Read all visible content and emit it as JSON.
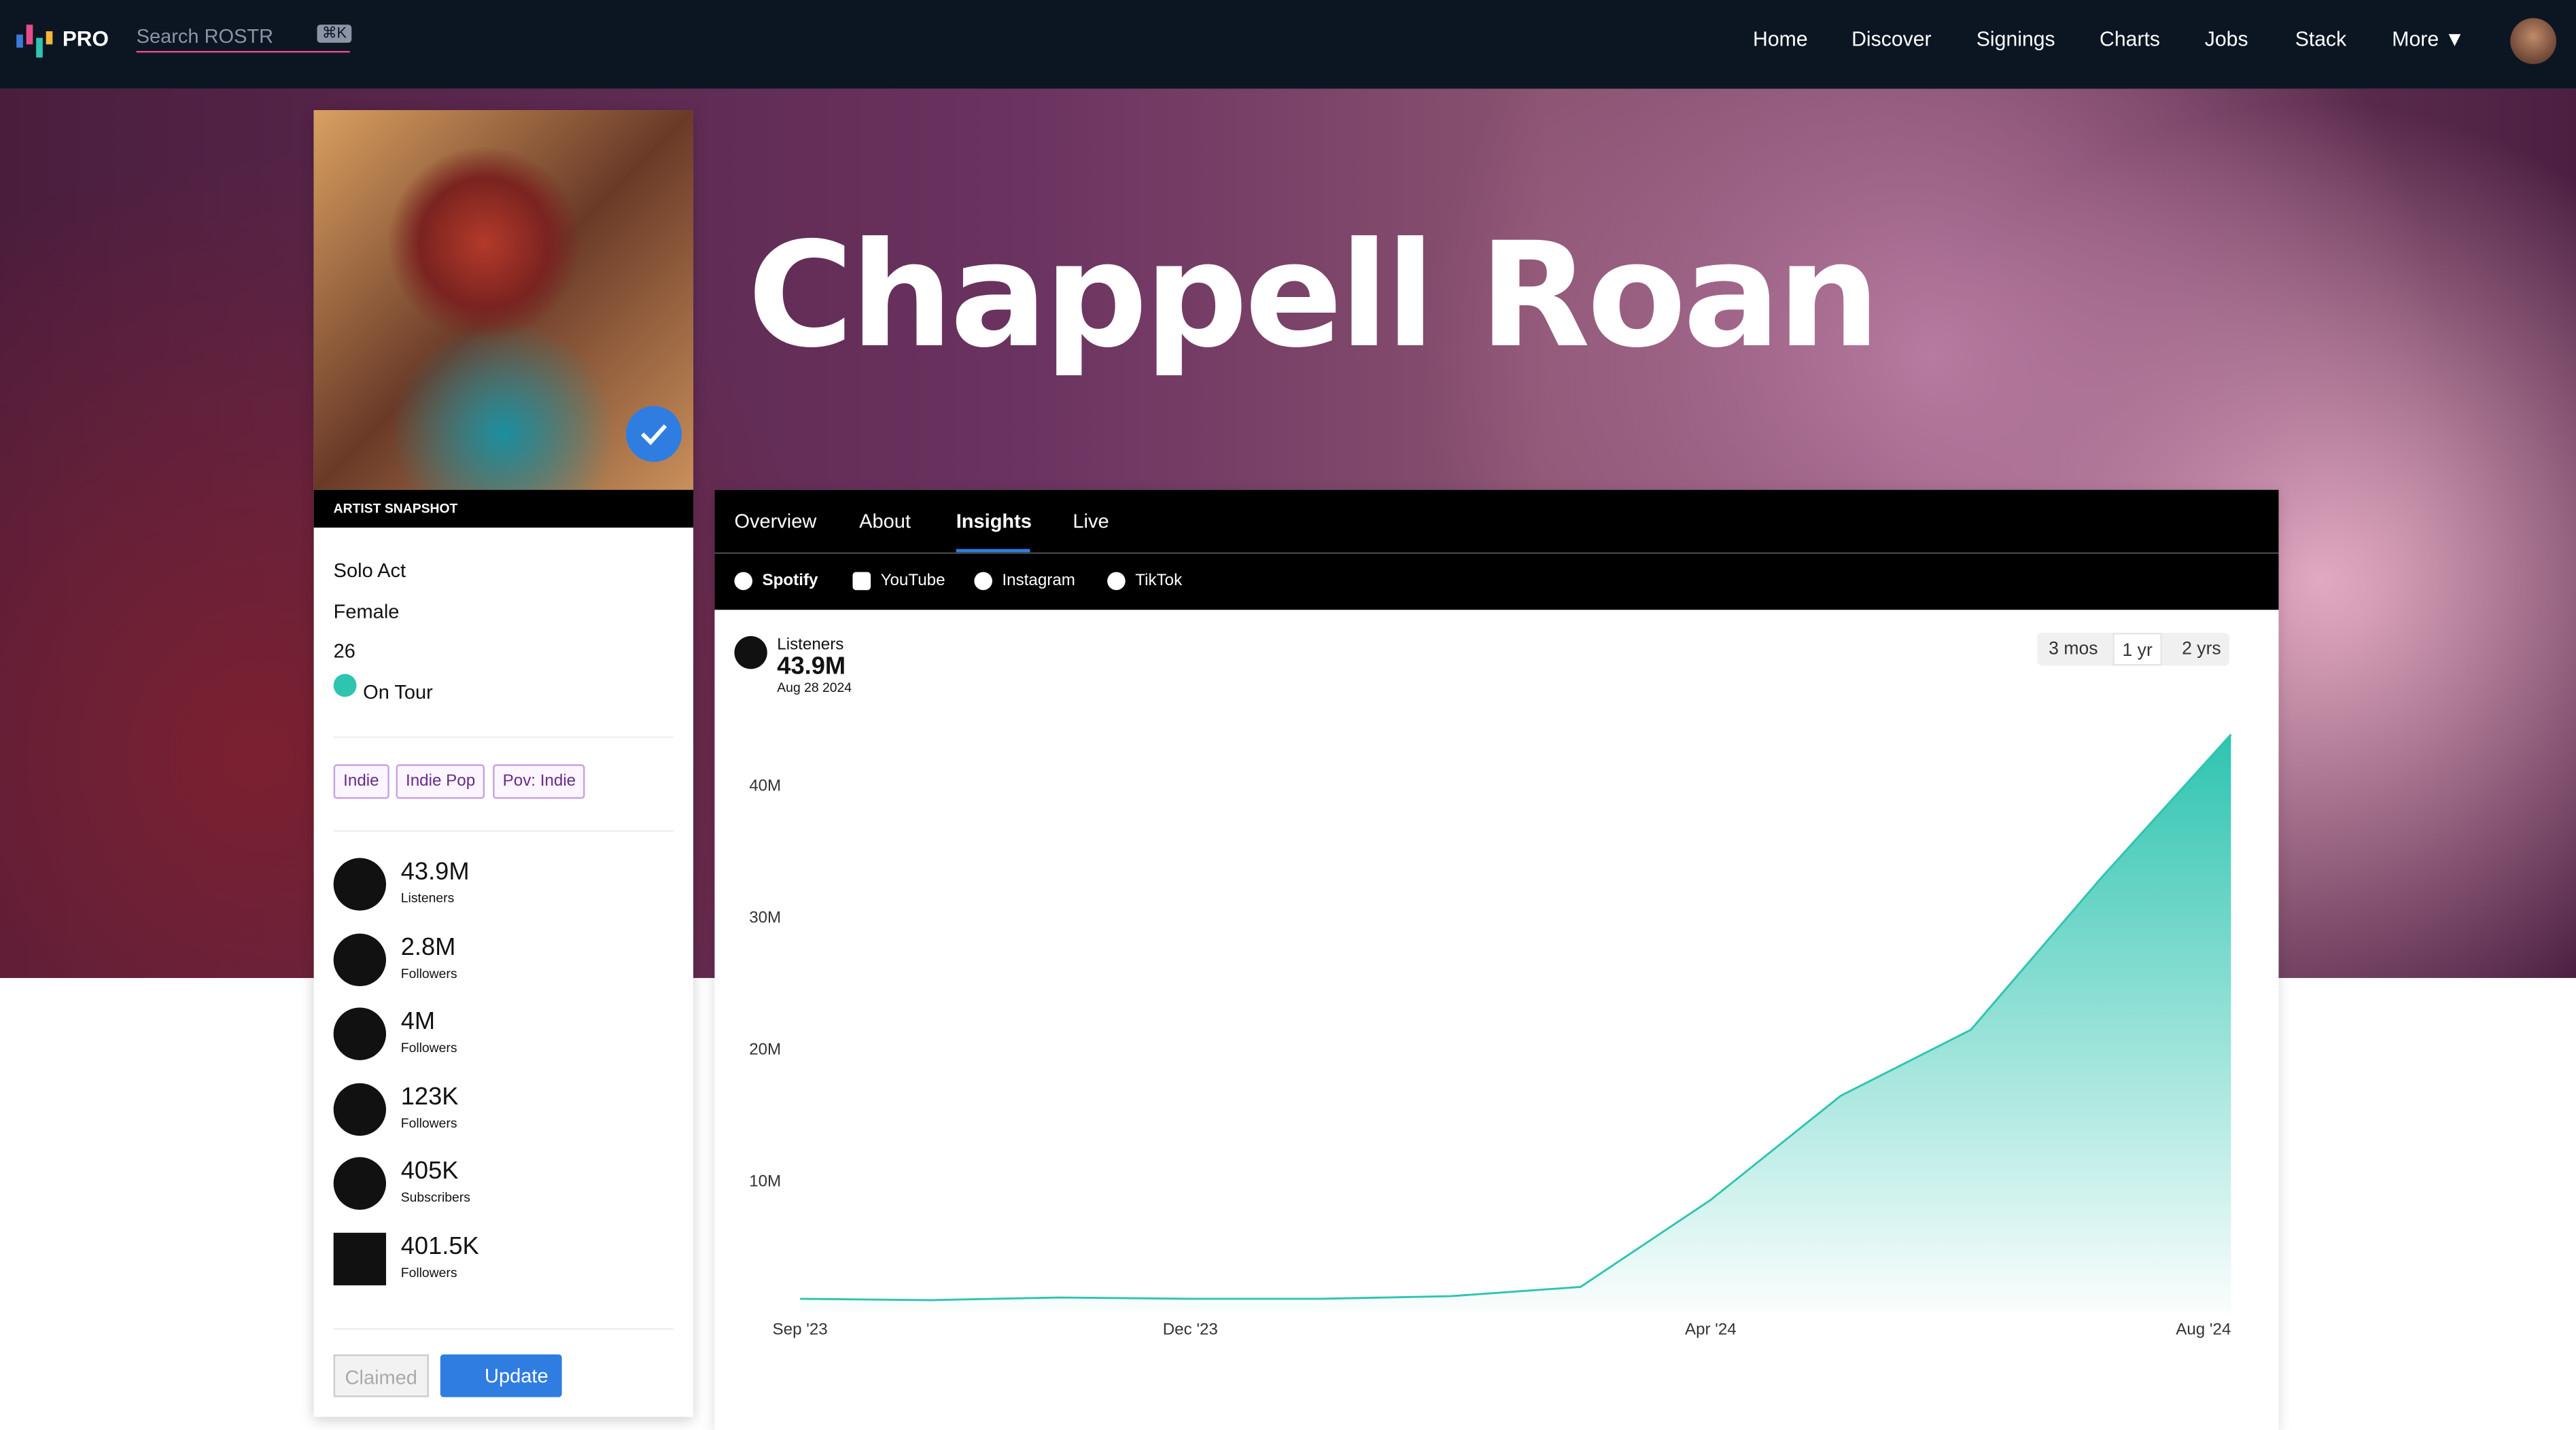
{
  "nav": {
    "brand": "PRO",
    "search_placeholder": "Search ROSTR",
    "shortcut": "⌘K",
    "links": [
      "Home",
      "Discover",
      "Signings",
      "Charts",
      "Jobs",
      "Stack",
      "More ▼"
    ]
  },
  "artist": {
    "name": "Chappell Roan"
  },
  "snapshot": {
    "title": "ARTIST SNAPSHOT",
    "facts": [
      "Solo Act",
      "Female",
      "26",
      "On Tour"
    ],
    "genres": [
      "Indie",
      "Indie Pop",
      "Pov: Indie"
    ],
    "stats": [
      {
        "value": "43.9M",
        "label": "Listeners"
      },
      {
        "value": "2.8M",
        "label": "Followers"
      },
      {
        "value": "4M",
        "label": "Followers"
      },
      {
        "value": "123K",
        "label": "Followers"
      },
      {
        "value": "405K",
        "label": "Subscribers"
      },
      {
        "value": "401.5K",
        "label": "Followers"
      }
    ],
    "buttons": [
      "Claimed",
      "Update"
    ]
  },
  "tabs": [
    "Overview",
    "About",
    "Insights",
    "Live"
  ],
  "platforms": [
    "Spotify",
    "YouTube",
    "Instagram",
    "TikTok"
  ],
  "chart_data": {
    "type": "area",
    "series_label": "Listeners",
    "stat": "43.9M",
    "date": "Aug 28 2024",
    "ranges": [
      "3 mos",
      "1 yr",
      "2 yrs"
    ],
    "categories": [
      "Sep '23",
      null,
      null,
      "Dec '23",
      null,
      null,
      null,
      "Apr '24",
      null,
      null,
      null,
      "Aug '24"
    ],
    "values": [
      1100000,
      1000000,
      1200000,
      1100000,
      1100000,
      1300000,
      2000000,
      8600000,
      16500000,
      21500000,
      33000000,
      43900000
    ],
    "color": "#2ec4b0",
    "ylim": [
      0,
      45000000
    ],
    "yticks": [
      {
        "value": 10000000,
        "label": "10M"
      },
      {
        "value": 20000000,
        "label": "20M"
      },
      {
        "value": 30000000,
        "label": "30M"
      },
      {
        "value": 40000000,
        "label": "40M"
      }
    ]
  }
}
